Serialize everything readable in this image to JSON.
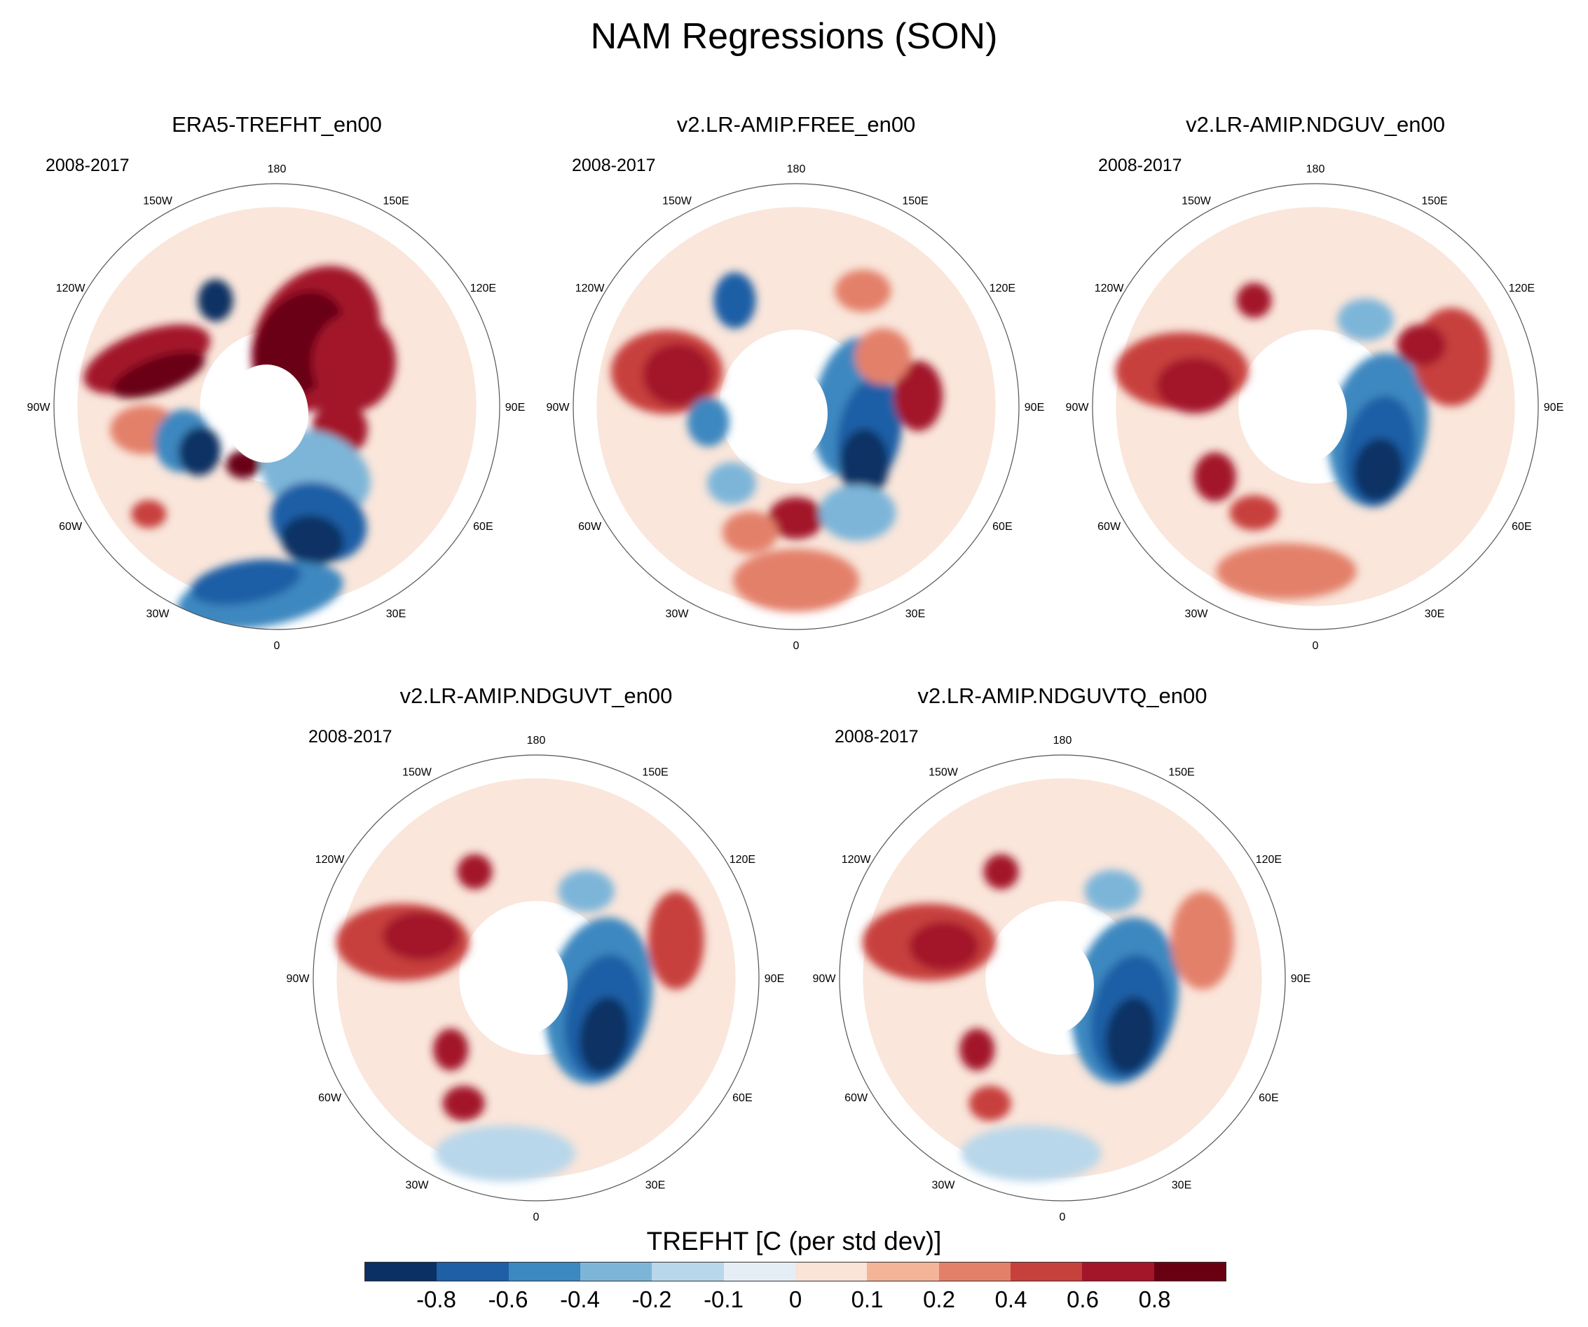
{
  "title": "NAM Regressions (SON)",
  "period": "2008-2017",
  "longitude_labels": [
    "180",
    "150E",
    "120E",
    "90E",
    "60E",
    "30E",
    "0",
    "30W",
    "60W",
    "90W",
    "120W",
    "150W"
  ],
  "panels": [
    {
      "title": "ERA5-TREFHT_en00",
      "pattern": "era5"
    },
    {
      "title": "v2.LR-AMIP.FREE_en00",
      "pattern": "free"
    },
    {
      "title": "v2.LR-AMIP.NDGUV_en00",
      "pattern": "uv"
    },
    {
      "title": "v2.LR-AMIP.NDGUVT_en00",
      "pattern": "uvt"
    },
    {
      "title": "v2.LR-AMIP.NDGUVTQ_en00",
      "pattern": "uvtq"
    }
  ],
  "colorbar": {
    "title": "TREFHT [C (per std dev)]",
    "labels": [
      "-0.8",
      "-0.6",
      "-0.4",
      "-0.2",
      "-0.1",
      "0",
      "0.1",
      "0.2",
      "0.4",
      "0.6",
      "0.8"
    ],
    "colors": [
      "#0a3064",
      "#1f5fa6",
      "#3c88c0",
      "#7db5d9",
      "#b9d7ea",
      "#e6eef5",
      "#fae3d7",
      "#f4b497",
      "#e3806a",
      "#c7413c",
      "#a3162a",
      "#690012"
    ]
  }
}
